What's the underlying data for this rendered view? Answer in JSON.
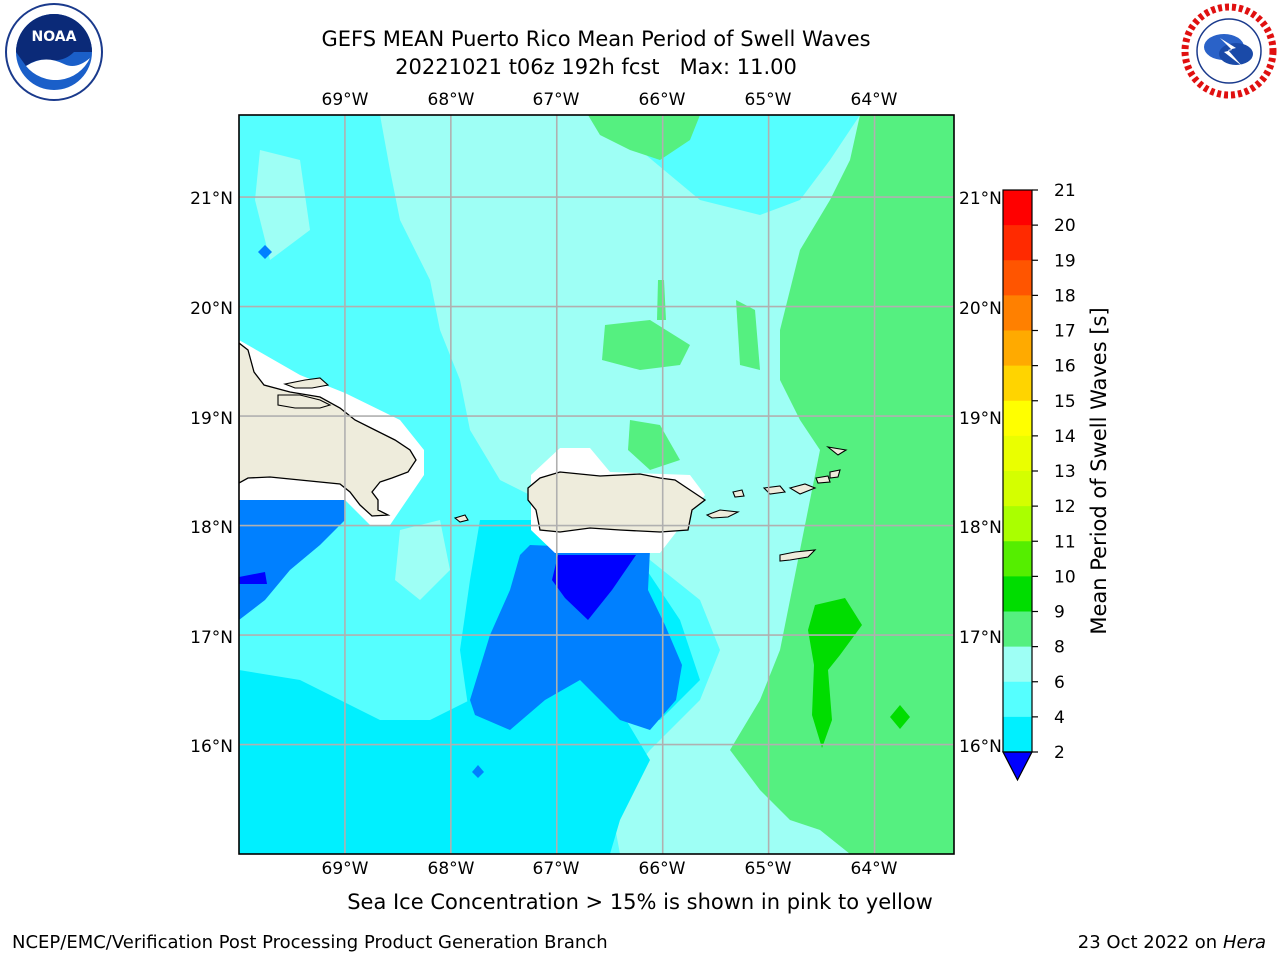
{
  "title": {
    "line1": "GEFS MEAN Puerto Rico Mean Period of Swell Waves",
    "line2": "20221021 t06z 192h fcst   Max: 11.00"
  },
  "map": {
    "lon_labels": [
      "69°W",
      "68°W",
      "67°W",
      "66°W",
      "65°W",
      "64°W"
    ],
    "lat_labels": [
      "21°N",
      "20°N",
      "19°N",
      "18°N",
      "17°N",
      "16°N"
    ],
    "lon_range": [
      -70.0,
      -63.25
    ],
    "lat_range": [
      15.0,
      21.75
    ],
    "grid": true
  },
  "colorbar": {
    "label": "Mean Period of Swell Waves [s]",
    "ticks": [
      "21",
      "20",
      "19",
      "18",
      "17",
      "16",
      "15",
      "14",
      "13",
      "12",
      "11",
      "10",
      "9",
      "8",
      "6",
      "4",
      "2"
    ],
    "colors": [
      "#ff0000",
      "#ff2a00",
      "#ff5500",
      "#ff8000",
      "#ffaa00",
      "#ffd400",
      "#ffff00",
      "#eaff00",
      "#d4ff00",
      "#aaff00",
      "#55ee00",
      "#00dd00",
      "#55f080",
      "#9efff5",
      "#55ffff",
      "#00f0ff",
      "#0080ff",
      "#0000ff"
    ]
  },
  "colors": {
    "period_2_4": "#0080ff",
    "period_lt_2": "#0000ff",
    "period_4_6": "#00f0ff",
    "period_6_8": "#55ffff",
    "period_8_9": "#9efff5",
    "period_9_10": "#55f080",
    "period_10_11": "#00dd00",
    "land": "#eeecdc",
    "grid": "#b0b0b0"
  },
  "icons": {
    "left_logo": "noaa-logo",
    "right_logo": "nws-logo"
  },
  "logo_text": {
    "noaa": "NOAA"
  },
  "ice_note": "Sea Ice Concentration > 15% is shown in pink to yellow",
  "footer": {
    "left": "NCEP/EMC/Verification Post Processing Product Generation Branch",
    "right_prefix": "23 Oct 2022 on ",
    "right_machine": "Hera"
  }
}
